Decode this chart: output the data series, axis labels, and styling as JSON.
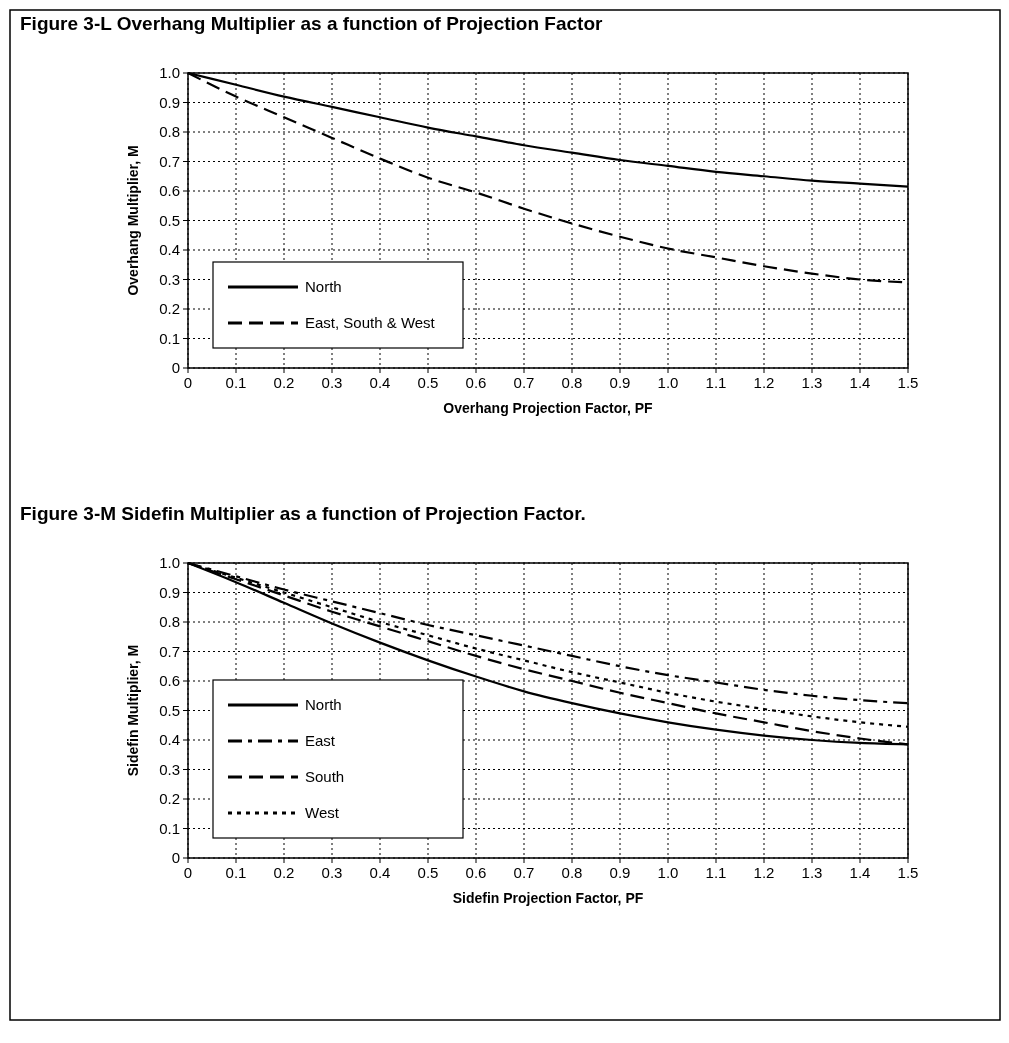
{
  "chart_data": [
    {
      "type": "line",
      "title": "Figure 3-L Overhang Multiplier as a function of Projection Factor",
      "xlabel": "Overhang  Projection  Factor,  PF",
      "ylabel": "Overhang  Multiplier,  M",
      "x": [
        0,
        0.1,
        0.2,
        0.3,
        0.4,
        0.5,
        0.6,
        0.7,
        0.8,
        0.9,
        1.0,
        1.1,
        1.2,
        1.3,
        1.4,
        1.5
      ],
      "series": [
        {
          "name": "North",
          "color": "#000000",
          "line_style": "solid",
          "values": [
            1.0,
            0.96,
            0.92,
            0.885,
            0.85,
            0.815,
            0.785,
            0.755,
            0.73,
            0.705,
            0.685,
            0.665,
            0.65,
            0.635,
            0.625,
            0.615
          ]
        },
        {
          "name": "East,  South  &  West",
          "color": "#000000",
          "line_style": "dashed",
          "values": [
            1.0,
            0.92,
            0.85,
            0.78,
            0.71,
            0.645,
            0.595,
            0.54,
            0.49,
            0.445,
            0.405,
            0.375,
            0.345,
            0.32,
            0.3,
            0.29
          ]
        }
      ],
      "xlim": [
        0,
        1.5
      ],
      "ylim": [
        0,
        1
      ],
      "xticks": [
        0,
        0.1,
        0.2,
        0.3,
        0.4,
        0.5,
        0.6,
        0.7,
        0.8,
        0.9,
        {
          "value": 1,
          "label": "1.0"
        },
        1.1,
        1.2,
        1.3,
        1.4,
        1.5
      ],
      "yticks": [
        0,
        0.1,
        0.2,
        0.3,
        0.4,
        0.5,
        0.6,
        0.7,
        0.8,
        0.9,
        {
          "value": 1,
          "label": "1.0"
        }
      ],
      "grid": true,
      "legend": "bottom left"
    },
    {
      "type": "line",
      "title": "Figure 3-M Sidefin Multiplier as a function of Projection Factor.",
      "xlabel": "Sidefin  Projection  Factor,  PF",
      "ylabel": "Sidefin  Multiplier,  M",
      "x": [
        0,
        0.1,
        0.2,
        0.3,
        0.4,
        0.5,
        0.6,
        0.7,
        0.8,
        0.9,
        1.0,
        1.1,
        1.2,
        1.3,
        1.4,
        1.5
      ],
      "series": [
        {
          "name": "North",
          "color": "#000000",
          "line_style": "solid",
          "values": [
            1.0,
            0.935,
            0.865,
            0.795,
            0.73,
            0.67,
            0.615,
            0.565,
            0.525,
            0.49,
            0.46,
            0.435,
            0.415,
            0.4,
            0.39,
            0.385
          ]
        },
        {
          "name": "East",
          "color": "#000000",
          "line_style": "dashdot",
          "values": [
            1.0,
            0.955,
            0.91,
            0.87,
            0.83,
            0.79,
            0.755,
            0.72,
            0.685,
            0.65,
            0.62,
            0.595,
            0.57,
            0.55,
            0.535,
            0.525
          ]
        },
        {
          "name": "South",
          "color": "#000000",
          "line_style": "dashed",
          "values": [
            1.0,
            0.945,
            0.89,
            0.835,
            0.785,
            0.735,
            0.685,
            0.64,
            0.6,
            0.56,
            0.525,
            0.49,
            0.46,
            0.43,
            0.405,
            0.385
          ]
        },
        {
          "name": "West",
          "color": "#000000",
          "line_style": "dotted",
          "values": [
            1.0,
            0.95,
            0.9,
            0.85,
            0.8,
            0.755,
            0.71,
            0.67,
            0.63,
            0.595,
            0.56,
            0.53,
            0.505,
            0.48,
            0.46,
            0.445
          ]
        }
      ],
      "xlim": [
        0,
        1.5
      ],
      "ylim": [
        0,
        1
      ],
      "xticks": [
        0,
        0.1,
        0.2,
        0.3,
        0.4,
        0.5,
        0.6,
        0.7,
        0.8,
        0.9,
        {
          "value": 1,
          "label": "1.0"
        },
        1.1,
        1.2,
        1.3,
        1.4,
        1.5
      ],
      "yticks": [
        0,
        0.1,
        0.2,
        0.3,
        0.4,
        0.5,
        0.6,
        0.7,
        0.8,
        0.9,
        {
          "value": 1,
          "label": "1.0"
        }
      ],
      "grid": true,
      "legend": "bottom left"
    }
  ]
}
